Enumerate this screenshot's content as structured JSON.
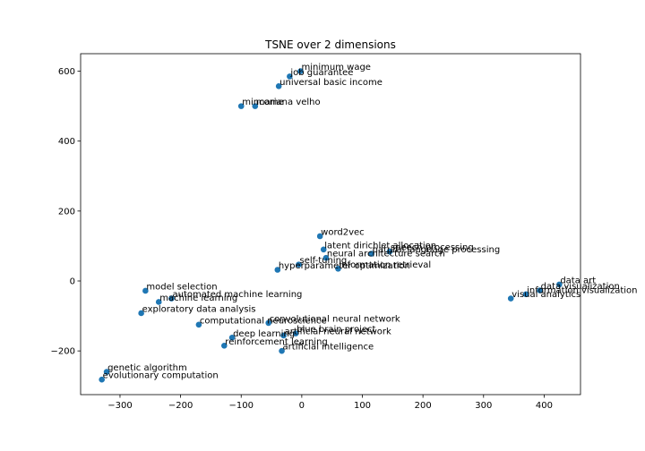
{
  "chart_data": {
    "type": "scatter",
    "title": "TSNE over 2 dimensions",
    "xlabel": "",
    "ylabel": "",
    "xlim": [
      -365,
      460
    ],
    "ylim": [
      -325,
      650
    ],
    "xticks": [
      -300,
      -200,
      -100,
      0,
      100,
      200,
      300,
      400
    ],
    "yticks": [
      -200,
      0,
      200,
      400,
      600
    ],
    "grid": false,
    "legend": "none",
    "marker_color": "#1f77b4",
    "points": [
      {
        "label": "minimum wage",
        "x": -2,
        "y": 600
      },
      {
        "label": "job guarantee",
        "x": -20,
        "y": 585
      },
      {
        "label": "universal basic income",
        "x": -38,
        "y": 557
      },
      {
        "label": "mincome",
        "x": -100,
        "y": 500
      },
      {
        "label": "mariana velho",
        "x": -77,
        "y": 500
      },
      {
        "label": "word2vec",
        "x": 30,
        "y": 128
      },
      {
        "label": "latent dirichlet allocation",
        "x": 36,
        "y": 90
      },
      {
        "label": "natural language processing",
        "x": 115,
        "y": 78
      },
      {
        "label": "speech processing",
        "x": 145,
        "y": 84
      },
      {
        "label": "neural architecture search",
        "x": 40,
        "y": 66
      },
      {
        "label": "self-tuning",
        "x": -5,
        "y": 47
      },
      {
        "label": "hyperparameter optimization",
        "x": -40,
        "y": 32
      },
      {
        "label": "information retrieval",
        "x": 60,
        "y": 35
      },
      {
        "label": "data art",
        "x": 425,
        "y": -10
      },
      {
        "label": "data visualization",
        "x": 393,
        "y": -27
      },
      {
        "label": "information visualization",
        "x": 370,
        "y": -38
      },
      {
        "label": "visual analytics",
        "x": 345,
        "y": -50
      },
      {
        "label": "model selection",
        "x": -258,
        "y": -28
      },
      {
        "label": "automated machine learning",
        "x": -215,
        "y": -50
      },
      {
        "label": "machine learning",
        "x": -236,
        "y": -60
      },
      {
        "label": "exploratory data analysis",
        "x": -265,
        "y": -92
      },
      {
        "label": "computational neuroscience",
        "x": -170,
        "y": -125
      },
      {
        "label": "convolutional neural network",
        "x": -55,
        "y": -120
      },
      {
        "label": "blue brain project",
        "x": -10,
        "y": -150
      },
      {
        "label": "artificial neural network",
        "x": -30,
        "y": -156
      },
      {
        "label": "deep learning",
        "x": -115,
        "y": -162
      },
      {
        "label": "reinforcement learning",
        "x": -128,
        "y": -185
      },
      {
        "label": "artificial intelligence",
        "x": -33,
        "y": -200
      },
      {
        "label": "genetic algorithm",
        "x": -322,
        "y": -260
      },
      {
        "label": "evolutionary computation",
        "x": -330,
        "y": -282
      }
    ]
  }
}
